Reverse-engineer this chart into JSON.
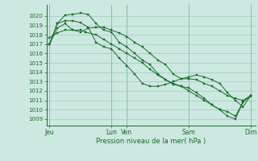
{
  "bg_color": "#cce8e0",
  "grid_color": "#99ccbb",
  "line_color": "#1a6b2a",
  "marker_color": "#1a6b2a",
  "xlabel": "Pression niveau de la mer( hPa )",
  "ylim": [
    1008.3,
    1021.2
  ],
  "yticks": [
    1009,
    1010,
    1011,
    1012,
    1013,
    1014,
    1015,
    1016,
    1017,
    1018,
    1019,
    1020
  ],
  "xtick_labels": [
    "Jeu",
    "Lun",
    "Ven",
    "Sam",
    "Dim"
  ],
  "xtick_positions": [
    0,
    4,
    5,
    9,
    13
  ],
  "vlines": [
    0,
    4,
    5,
    9,
    13
  ],
  "line1_x": [
    0,
    0.5,
    1.0,
    1.5,
    2.0,
    2.5,
    3.0,
    3.5,
    4.0,
    4.5,
    5.0,
    5.5,
    6.0,
    6.5,
    7.0,
    7.5,
    8.0,
    8.5,
    9.0,
    9.5,
    10.0,
    10.5,
    11.0,
    11.5,
    12.0,
    12.5,
    13.0
  ],
  "line1_y": [
    1017.0,
    1019.2,
    1020.1,
    1020.2,
    1020.3,
    1020.2,
    1019.2,
    1018.5,
    1018.3,
    1017.2,
    1016.7,
    1016.0,
    1015.3,
    1014.8,
    1013.8,
    1013.2,
    1012.7,
    1012.5,
    1012.3,
    1011.8,
    1011.2,
    1010.5,
    1010.0,
    1009.8,
    1009.3,
    1010.8,
    1011.5
  ],
  "line2_x": [
    0,
    0.5,
    1.0,
    1.5,
    2.0,
    2.5,
    3.0,
    3.5,
    4.0,
    4.5,
    5.0,
    5.5,
    6.0,
    6.5,
    7.0,
    7.5,
    8.0,
    8.5,
    9.0,
    9.5,
    10.0,
    10.5,
    11.0,
    11.5,
    12.0,
    12.5,
    13.0
  ],
  "line2_y": [
    1017.0,
    1018.7,
    1019.2,
    1018.5,
    1018.3,
    1018.7,
    1018.8,
    1018.8,
    1018.5,
    1018.2,
    1017.8,
    1017.2,
    1016.7,
    1016.0,
    1015.3,
    1014.8,
    1013.8,
    1013.3,
    1013.3,
    1013.2,
    1012.8,
    1012.5,
    1012.0,
    1011.5,
    1011.2,
    1011.0,
    1011.5
  ],
  "line3_x": [
    0,
    0.5,
    1.0,
    1.5,
    2.0,
    2.3,
    3.0,
    3.5,
    4.0,
    4.5,
    5.0,
    5.5,
    6.0,
    6.5,
    7.0,
    7.5,
    8.0,
    8.5,
    9.0,
    9.5,
    10.0,
    10.5,
    11.0,
    11.5,
    12.0,
    12.5,
    13.0
  ],
  "line3_y": [
    1017.7,
    1018.2,
    1018.5,
    1018.5,
    1018.5,
    1018.3,
    1018.0,
    1017.5,
    1017.0,
    1016.5,
    1016.0,
    1015.5,
    1015.0,
    1014.3,
    1013.7,
    1013.2,
    1012.8,
    1012.5,
    1012.0,
    1011.5,
    1011.0,
    1010.5,
    1010.0,
    1009.3,
    1009.0,
    1010.8,
    1011.5
  ],
  "line4_x": [
    0,
    0.5,
    1.0,
    1.5,
    2.0,
    2.5,
    3.0,
    3.5,
    4.0,
    4.5,
    5.0,
    5.5,
    6.0,
    6.5,
    7.0,
    7.5,
    8.0,
    8.5,
    9.0,
    9.5,
    10.0,
    10.5,
    11.0,
    11.5,
    12.0,
    12.5,
    13.0
  ],
  "line4_y": [
    1017.0,
    1019.2,
    1019.5,
    1019.5,
    1019.3,
    1018.8,
    1017.2,
    1016.7,
    1016.5,
    1015.5,
    1014.7,
    1013.8,
    1012.8,
    1012.5,
    1012.5,
    1012.7,
    1013.0,
    1013.3,
    1013.5,
    1013.7,
    1013.5,
    1013.2,
    1012.8,
    1011.8,
    1011.0,
    1010.3,
    1011.5
  ]
}
